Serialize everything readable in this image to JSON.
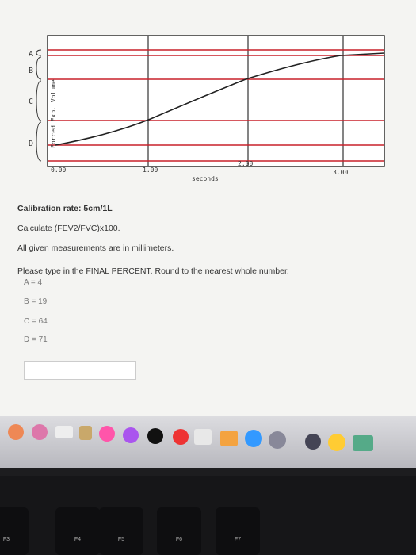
{
  "figure": {
    "y_axis_label": "Forced Exp. Volume",
    "x_axis_label": "seconds",
    "x_tick_labels": [
      "0.00",
      "1.00",
      "2.00",
      "3.00"
    ],
    "brackets": [
      "A",
      "B",
      "C",
      "D"
    ]
  },
  "question": {
    "calibration": "Calibration rate: 5cm/1L",
    "instruction": "Calculate (FEV2/FVC)x100.",
    "units_note": "All given measurements are in millimeters.",
    "prompt": "Please type in the FINAL PERCENT. Round to the nearest whole number.",
    "measurements": [
      "A = 4",
      "B = 19",
      "C = 64",
      "D = 71"
    ]
  },
  "keyboard": {
    "keys": [
      "F3",
      "F4",
      "F5",
      "F6",
      "F7"
    ]
  }
}
